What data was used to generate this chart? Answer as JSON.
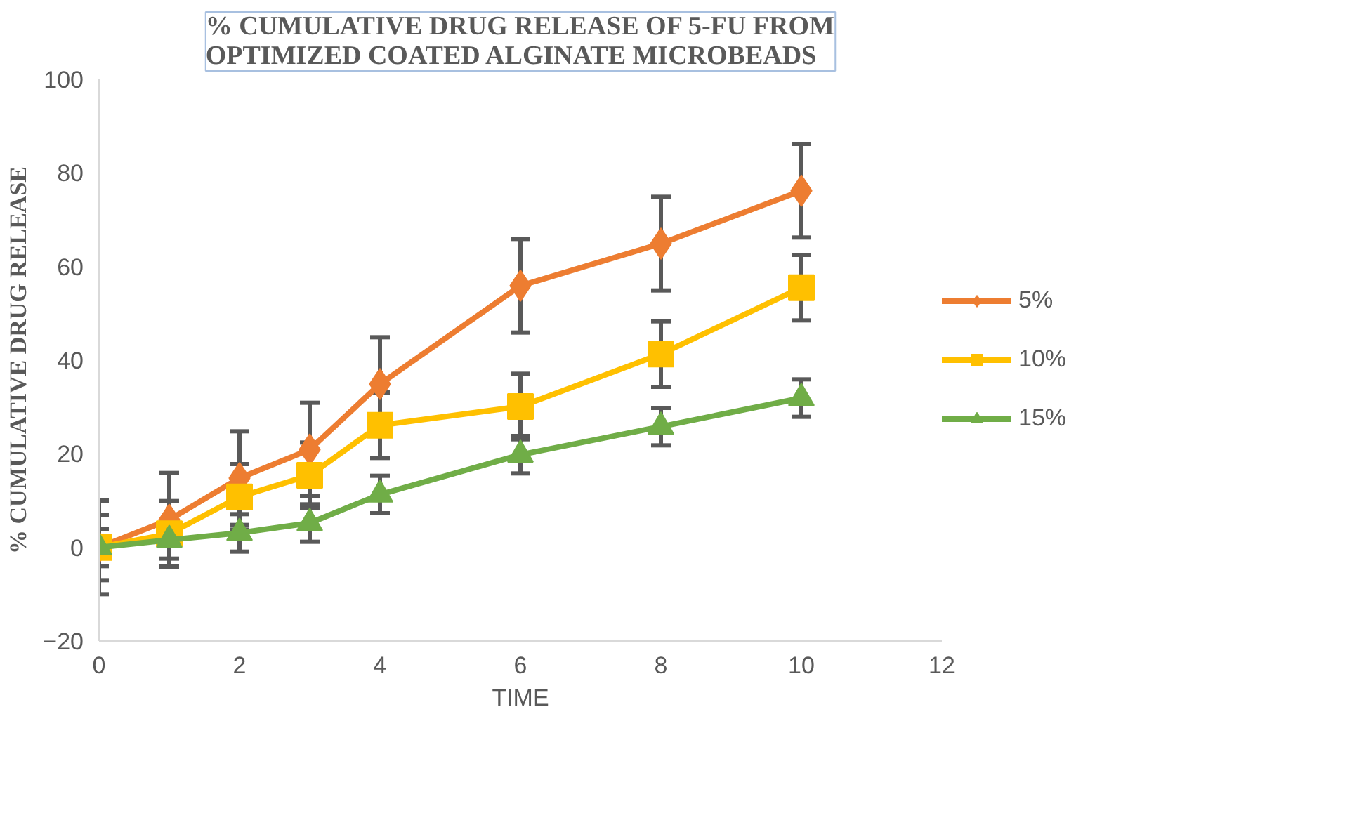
{
  "chart_data": {
    "type": "line",
    "title": "% CUMULATIVE DRUG RELEASE OF 5-FU FROM\nOPTIMIZED COATED ALGINATE MICROBEADS",
    "xlabel": "TIME",
    "ylabel": "% CUMULATIVE DRUG RELEASE",
    "x": [
      0,
      1,
      2,
      3,
      4,
      6,
      8,
      10
    ],
    "series": [
      {
        "name": "5%",
        "color": "#ed7d31",
        "marker": "diamond",
        "values": [
          0,
          5.9,
          14.8,
          20.9,
          34.9,
          55.9,
          64.9,
          76.2
        ],
        "errors": [
          10,
          10,
          10,
          10,
          10,
          10,
          10,
          10
        ]
      },
      {
        "name": "10%",
        "color": "#ffc000",
        "marker": "square",
        "values": [
          0,
          2.9,
          10.8,
          15.4,
          26.1,
          30.1,
          41.3,
          55.5
        ],
        "errors": [
          7,
          7,
          7,
          7,
          7,
          7,
          7,
          7
        ]
      },
      {
        "name": "15%",
        "color": "#70ad47",
        "marker": "triangle",
        "values": [
          0,
          1.6,
          3.1,
          5.2,
          11.3,
          19.8,
          25.8,
          31.9
        ],
        "errors": [
          4,
          4,
          4,
          4,
          4,
          4,
          4,
          4
        ]
      }
    ],
    "xlim": [
      0,
      12
    ],
    "xticks": [
      0,
      2,
      4,
      6,
      8,
      10,
      12
    ],
    "ylim": [
      -20,
      100
    ],
    "yticks": [
      -20,
      0,
      20,
      40,
      60,
      80,
      100
    ],
    "grid": false,
    "legend": "right",
    "line_style": "solid"
  }
}
